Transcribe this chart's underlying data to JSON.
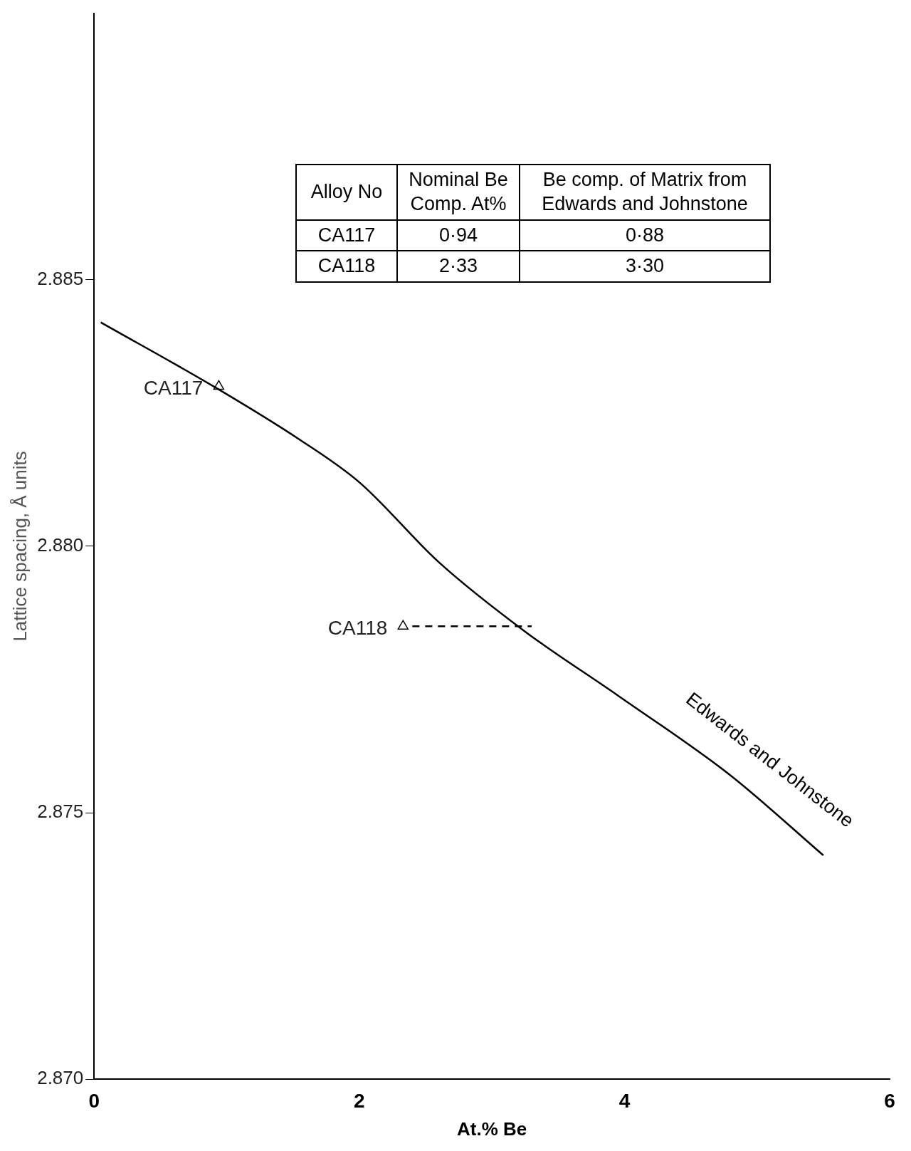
{
  "chart_data": {
    "type": "line",
    "xlabel": "At.% Be",
    "ylabel": "Lattice spacing, Å units",
    "xlim": [
      0,
      6
    ],
    "xticks": [
      0,
      2,
      4,
      6
    ],
    "ylim": [
      2.87,
      2.89
    ],
    "yticks": [
      {
        "value": 2.87,
        "label": "2.870"
      },
      {
        "value": 2.875,
        "label": "2.875"
      },
      {
        "value": 2.88,
        "label": "2.880"
      },
      {
        "value": 2.885,
        "label": "2.885"
      }
    ],
    "grid": false,
    "legend": false,
    "series": [
      {
        "name": "Edwards and Johnstone",
        "color": "#000000",
        "marker": "none",
        "line_style": "solid",
        "x": [
          0.05,
          0.9,
          1.55,
          2.0,
          2.6,
          3.25,
          3.95,
          4.8,
          5.5
        ],
        "values": [
          2.8842,
          2.883,
          2.882,
          2.8812,
          2.8797,
          2.8784,
          2.8772,
          2.8757,
          2.8742
        ]
      },
      {
        "type": "scatter",
        "color": "#000000",
        "marker": "triangle",
        "x": [
          0.94,
          2.33
        ],
        "values": [
          2.883,
          2.8785
        ]
      },
      {
        "type": "line",
        "color": "#000000",
        "marker": "none",
        "line_style": "dashed",
        "x": [
          2.4,
          3.3
        ],
        "values": [
          2.8785,
          2.8785
        ]
      }
    ],
    "annotations": [
      {
        "text": "CA117",
        "x": 0.94,
        "y": 2.883
      },
      {
        "text": "CA118",
        "x": 2.33,
        "y": 2.8785
      },
      "Alloy No",
      "Nominal Be Comp. At%",
      "Be comp. of Matrix from Edwards and Johnstone",
      "CA117",
      "0·94",
      "0·88",
      "CA118",
      "2·33",
      "3·30"
    ]
  }
}
